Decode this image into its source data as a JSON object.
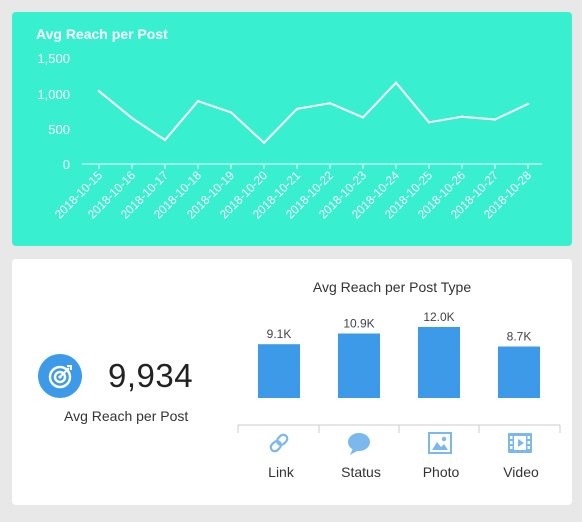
{
  "top_chart": {
    "title": "Avg Reach per Post",
    "y_ticks": [
      "1,500",
      "1,000",
      "500",
      "0"
    ]
  },
  "kpi": {
    "value": "9,934",
    "label": "Avg Reach per Post",
    "icon": "target-icon"
  },
  "bar_chart": {
    "title": "Avg Reach per Post Type"
  },
  "chart_data": [
    {
      "type": "line",
      "title": "Avg Reach per Post",
      "x": [
        "2018-10-15",
        "2018-10-16",
        "2018-10-17",
        "2018-10-18",
        "2018-10-19",
        "2018-10-20",
        "2018-10-21",
        "2018-10-22",
        "2018-10-23",
        "2018-10-24",
        "2018-10-25",
        "2018-10-26",
        "2018-10-27",
        "2018-10-28"
      ],
      "values": [
        1030,
        650,
        340,
        890,
        730,
        300,
        780,
        860,
        660,
        1150,
        590,
        670,
        630,
        850
      ],
      "ylim": [
        0,
        1500
      ],
      "yticks": [
        0,
        500,
        1000,
        1500
      ],
      "grid": false,
      "colors": {
        "line": "#ffffff",
        "background": "#38f0cf"
      }
    },
    {
      "type": "bar",
      "title": "Avg Reach per Post Type",
      "categories": [
        "Link",
        "Status",
        "Photo",
        "Video"
      ],
      "values": [
        9100,
        10900,
        12000,
        8700
      ],
      "data_labels": [
        "9.1K",
        "10.9K",
        "12.0K",
        "8.7K"
      ],
      "icons": [
        "link-icon",
        "speech-bubble-icon",
        "photo-icon",
        "video-icon"
      ],
      "ylim": [
        0,
        12000
      ],
      "colors": {
        "bar": "#3d9ae8",
        "icon": "#7ab8ee"
      }
    }
  ]
}
